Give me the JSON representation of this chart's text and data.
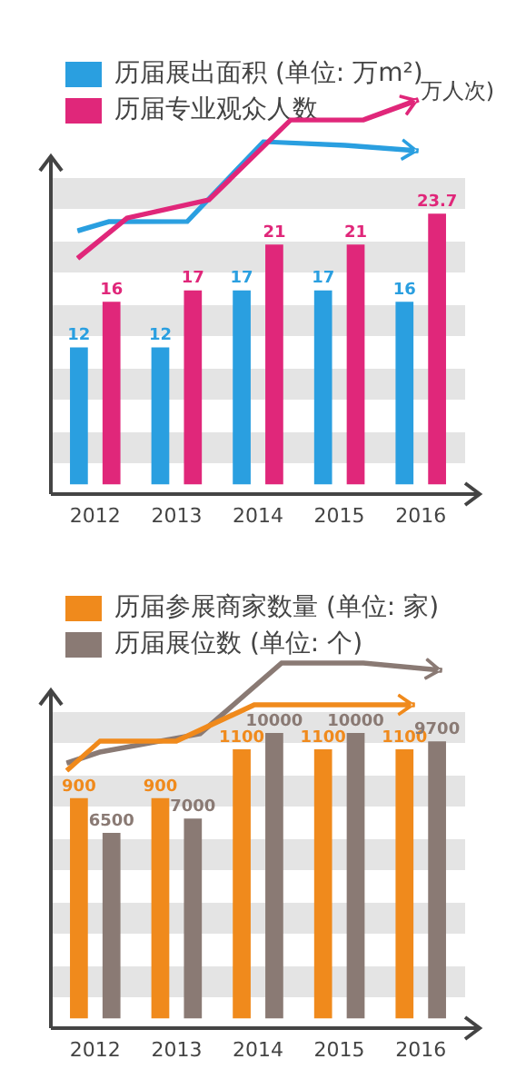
{
  "chart_data": [
    {
      "type": "bar",
      "categories": [
        "2012",
        "2013",
        "2014",
        "2015",
        "2016"
      ],
      "series": [
        {
          "name": "历届展出面积 (单位: 万m²)",
          "color": "#2a9fe0",
          "values": [
            12,
            12,
            17,
            17,
            16
          ]
        },
        {
          "name": "历届专业观众人数",
          "color": "#e0277a",
          "values": [
            16,
            17,
            21,
            21,
            23.7
          ]
        }
      ],
      "annotations": [
        "万人次)"
      ],
      "data_labels": true,
      "legend": "top",
      "grid": false
    },
    {
      "type": "bar",
      "categories": [
        "2012",
        "2013",
        "2014",
        "2015",
        "2016"
      ],
      "series": [
        {
          "name": "历届参展商家数量 (单位: 家)",
          "color": "#f08a1c",
          "values": [
            900,
            900,
            1100,
            1100,
            1100
          ],
          "axis": "y2"
        },
        {
          "name": "历届展位数 (单位: 个)",
          "color": "#8a7a74",
          "values": [
            6500,
            7000,
            10000,
            10000,
            9700
          ]
        }
      ],
      "data_labels": true,
      "legend": "top",
      "grid": false
    }
  ]
}
